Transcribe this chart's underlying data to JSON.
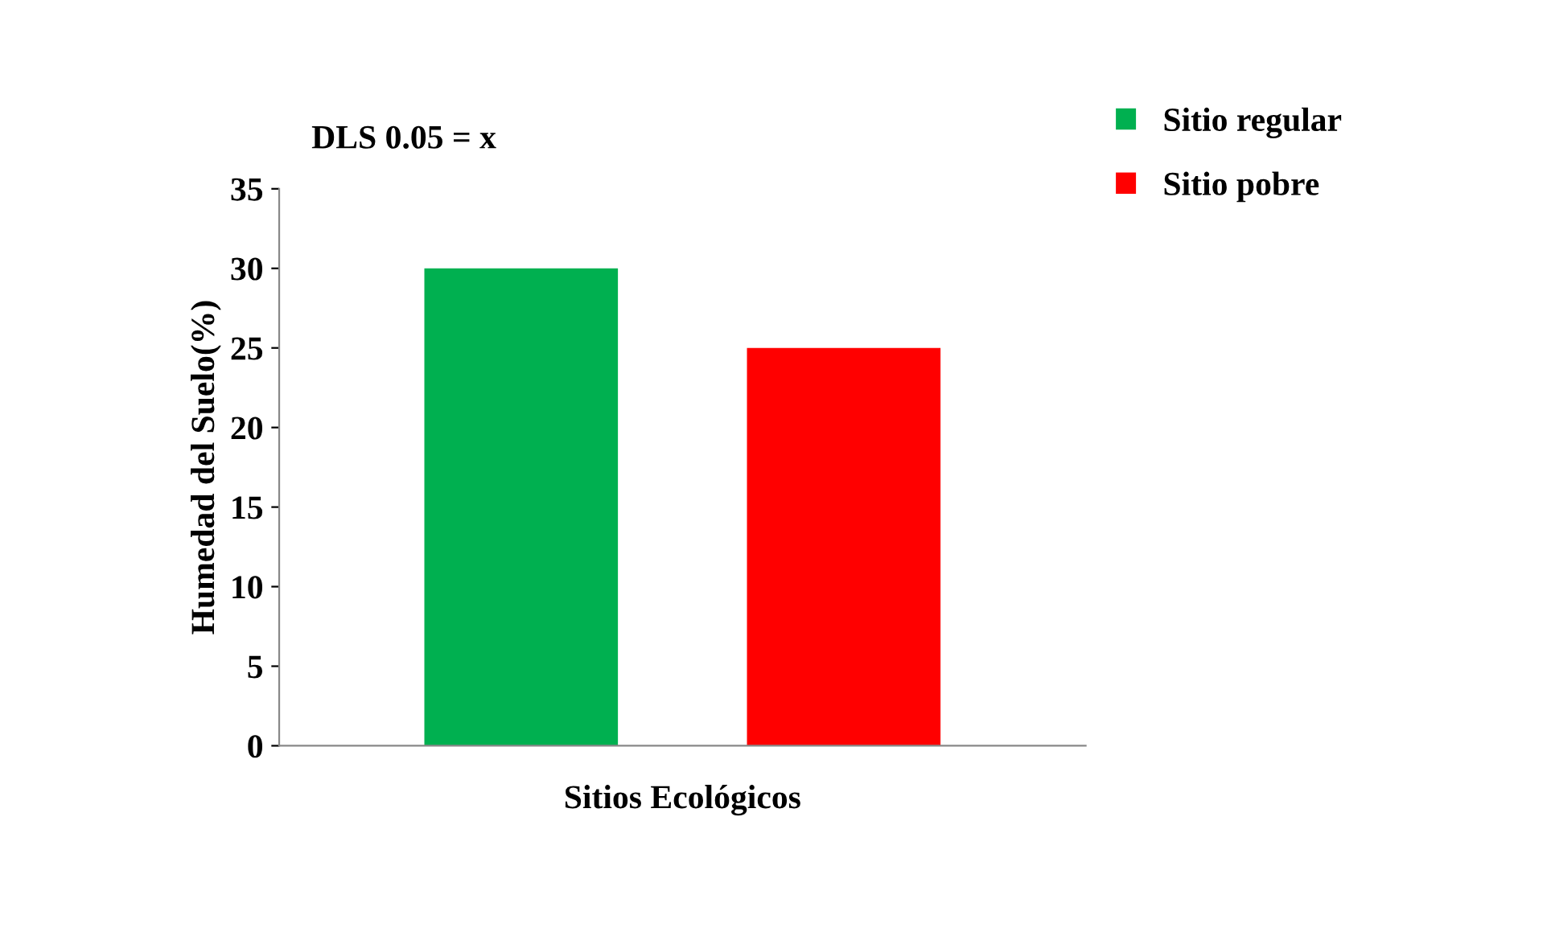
{
  "chart_data": {
    "type": "bar",
    "categories": [
      null
    ],
    "series": [
      {
        "name": "Sitio regular",
        "color": "#00b050",
        "values": [
          30
        ]
      },
      {
        "name": "Sitio pobre",
        "color": "#ff0000",
        "values": [
          25
        ]
      }
    ],
    "xlabel": "Sitios Ecológicos",
    "ylabel": "Humedad del Suelo(%)",
    "annotations": [
      "DLS 0.05 = x"
    ],
    "ylim": [
      0,
      35
    ],
    "yticks": [
      0,
      5,
      10,
      15,
      20,
      25,
      30,
      35
    ],
    "grid": false,
    "legend": "top right"
  }
}
